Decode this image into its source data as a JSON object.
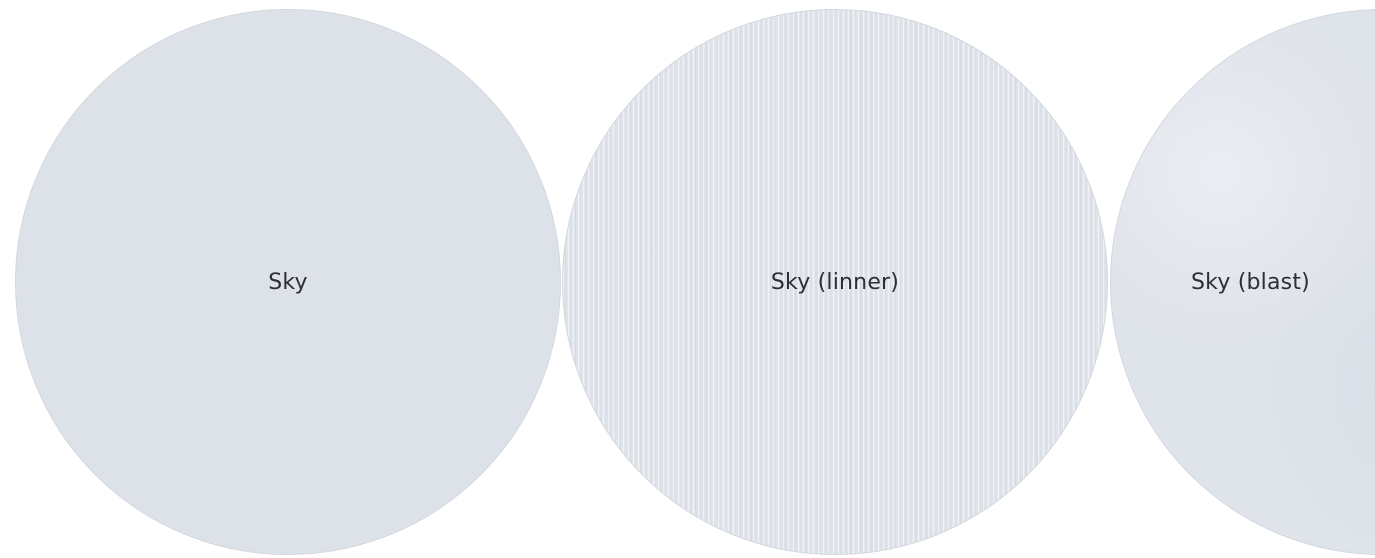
{
  "swatches": [
    {
      "label": "Sky",
      "color": "#dde1e8"
    },
    {
      "label": "Sky (linner)",
      "color": "#dfe3ea"
    },
    {
      "label": "Sky (blast)",
      "color": "#dfe3ea"
    }
  ]
}
